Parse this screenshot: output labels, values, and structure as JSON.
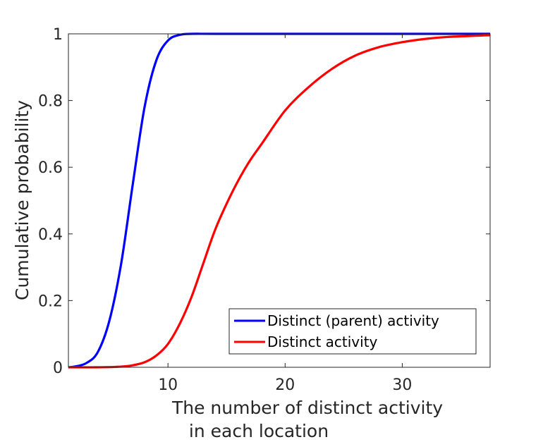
{
  "chart_data": {
    "type": "line",
    "xlabel": [
      "The number of distinct activity",
      "in each location"
    ],
    "ylabel": "Cumulative probability",
    "xlim": [
      1.5,
      37.5
    ],
    "ylim": [
      0,
      1
    ],
    "xticks": [
      10,
      20,
      30
    ],
    "xtick_labels": [
      "10",
      "20",
      "30"
    ],
    "yticks": [
      0,
      0.2,
      0.4,
      0.6,
      0.8,
      1
    ],
    "ytick_labels": [
      "0",
      "0.2",
      "0.4",
      "0.6",
      "0.8",
      "1"
    ],
    "grid": false,
    "legend_position": "bottom-right",
    "series": [
      {
        "name": "Distinct (parent) activity",
        "color": "#0000ff",
        "x": [
          1.5,
          2,
          3,
          4,
          5,
          6,
          7,
          8,
          9,
          10,
          11,
          12,
          14,
          20,
          37.5
        ],
        "y": [
          0.0,
          0.002,
          0.012,
          0.045,
          0.14,
          0.31,
          0.55,
          0.78,
          0.92,
          0.98,
          0.997,
          1.0,
          1.0,
          1.0,
          1.0
        ]
      },
      {
        "name": "Distinct activity",
        "color": "#ff0000",
        "x": [
          1.5,
          4,
          6,
          7,
          8,
          9,
          10,
          11,
          12,
          13,
          14,
          15,
          16,
          17,
          18,
          20,
          22,
          24,
          26,
          28,
          30,
          32,
          34,
          37.5
        ],
        "y": [
          0.0,
          0.0,
          0.002,
          0.006,
          0.015,
          0.035,
          0.07,
          0.13,
          0.21,
          0.31,
          0.41,
          0.49,
          0.56,
          0.62,
          0.67,
          0.77,
          0.84,
          0.895,
          0.935,
          0.96,
          0.975,
          0.985,
          0.991,
          0.996
        ]
      }
    ]
  }
}
